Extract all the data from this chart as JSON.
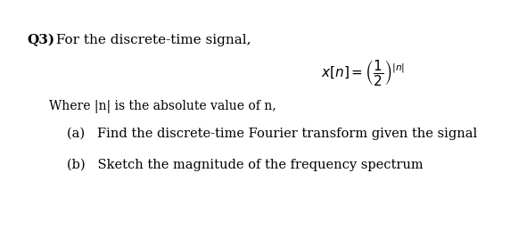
{
  "background_color": "#ffffff",
  "q3_bold": "Q3)",
  "q3_normal": " For the discrete-time signal,",
  "where_text": "Where |n| is the absolute value of n,",
  "part_a": "(a)   Find the discrete-time Fourier transform given the signal",
  "part_b": "(b)   Sketch the magnitude of the frequency spectrum",
  "fontsize_q3": 11,
  "fontsize_formula": 11,
  "fontsize_where": 10,
  "fontsize_parts": 10.5
}
